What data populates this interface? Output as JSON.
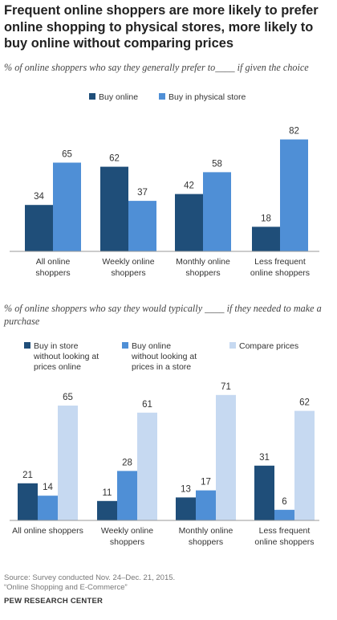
{
  "header": {
    "title": "Frequent online shoppers are more likely to prefer online shopping to physical stores, more likely to buy online without comparing prices"
  },
  "colors": {
    "dark": "#1f4e79",
    "mid": "#4f8fd6",
    "light": "#c6d9f1"
  },
  "chart_data": [
    {
      "type": "bar",
      "title": "% of online shoppers who say they generally prefer to____ if given the choice",
      "categories": [
        "All online shoppers",
        "Weekly online shoppers",
        "Monthly online shoppers",
        "Less frequent online shoppers"
      ],
      "category_lines": [
        [
          "All online",
          "shoppers"
        ],
        [
          "Weekly online",
          "shoppers"
        ],
        [
          "Monthly online",
          "shoppers"
        ],
        [
          "Less frequent",
          "online shoppers"
        ]
      ],
      "series": [
        {
          "name": "Buy online",
          "values": [
            34,
            62,
            42,
            18
          ],
          "color": "#1f4e79"
        },
        {
          "name": "Buy in physical store",
          "values": [
            65,
            37,
            58,
            82
          ],
          "color": "#4f8fd6"
        }
      ],
      "ylim": [
        0,
        100
      ],
      "legend_position": "top"
    },
    {
      "type": "bar",
      "title": "% of online shoppers who say they would typically ____ if they needed to make a purchase",
      "categories": [
        "All online shoppers",
        "Weekly online shoppers",
        "Monthly online shoppers",
        "Less frequent online shoppers"
      ],
      "category_lines": [
        [
          "All online shoppers"
        ],
        [
          "Weekly online",
          "shoppers"
        ],
        [
          "Monthly online",
          "shoppers"
        ],
        [
          "Less frequent",
          "online shoppers"
        ]
      ],
      "series": [
        {
          "name": "Buy in store without looking at prices online",
          "legend_lines": [
            "Buy in store",
            "without looking at",
            "prices online"
          ],
          "values": [
            21,
            11,
            13,
            31
          ],
          "color": "#1f4e79"
        },
        {
          "name": "Buy online without looking at prices in a store",
          "legend_lines": [
            "Buy online",
            "without looking at",
            "prices in a store"
          ],
          "values": [
            14,
            28,
            17,
            6
          ],
          "color": "#4f8fd6"
        },
        {
          "name": "Compare prices",
          "legend_lines": [
            "Compare prices"
          ],
          "values": [
            65,
            61,
            71,
            62
          ],
          "color": "#c6d9f1"
        }
      ],
      "ylim": [
        0,
        100
      ],
      "legend_position": "top"
    }
  ],
  "footer": {
    "source_line1": "Source: Survey conducted Nov. 24–Dec. 21, 2015.",
    "source_line2": "“Online Shopping and E-Commerce”",
    "org": "PEW RESEARCH CENTER"
  }
}
